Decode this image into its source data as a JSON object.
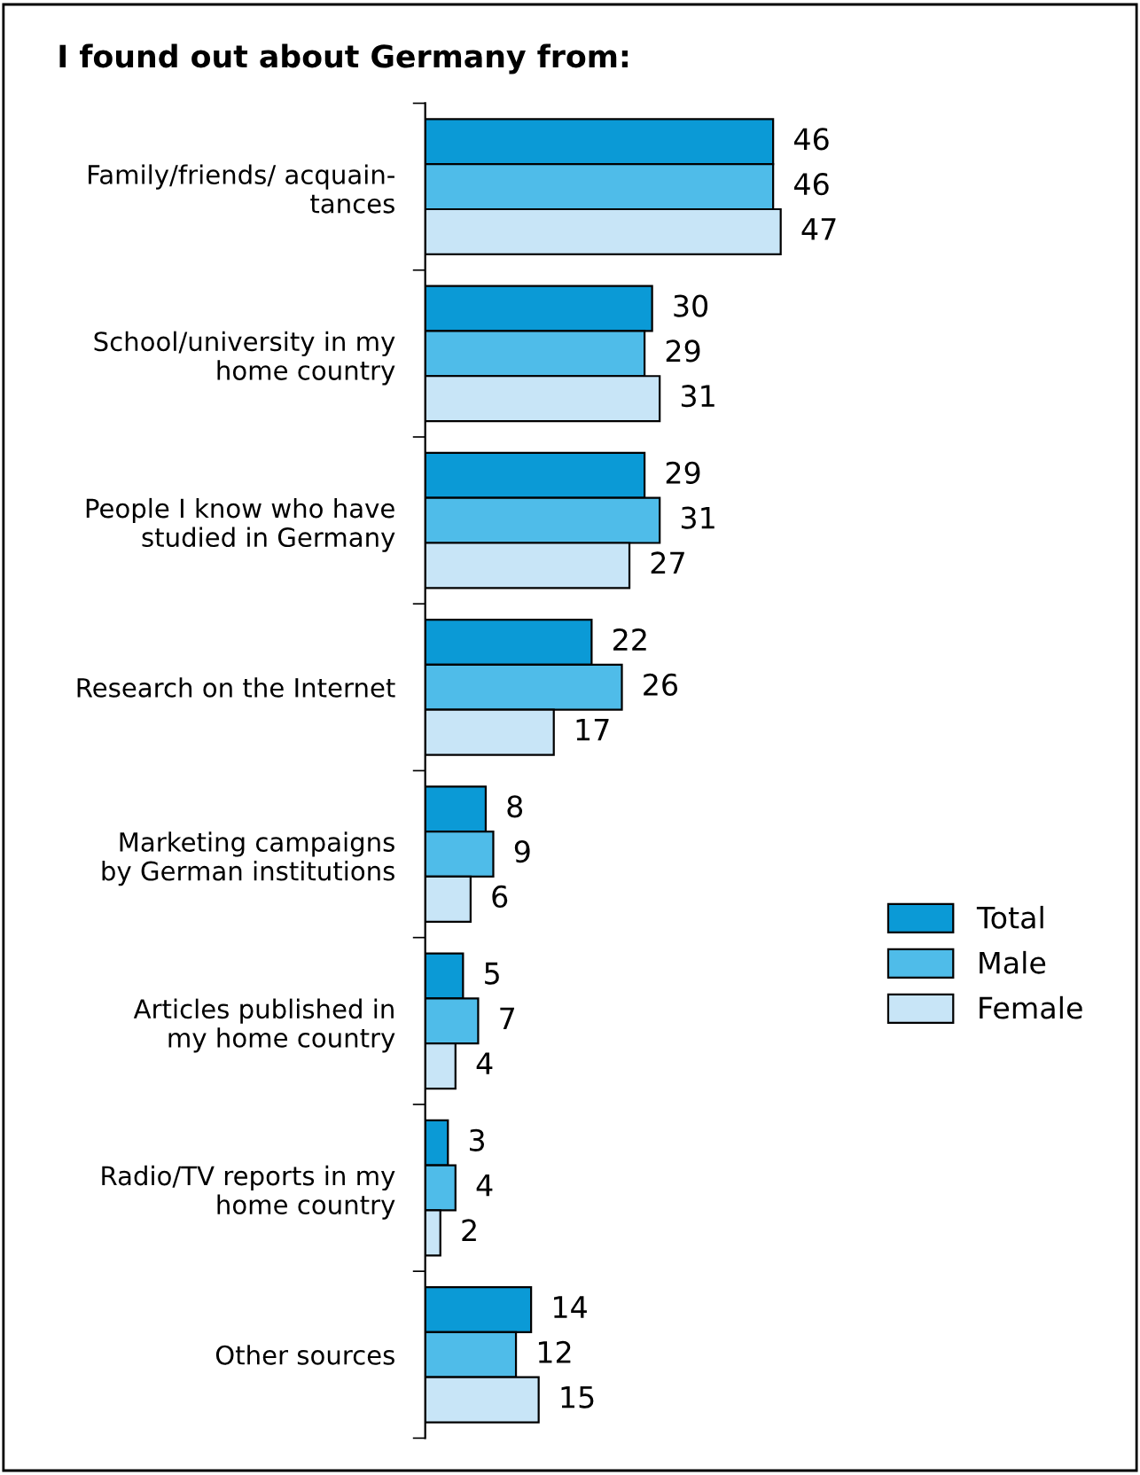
{
  "chart_data": {
    "type": "bar",
    "orientation": "horizontal",
    "title": "I found out about Germany from:",
    "categories": [
      "Family/friends/ acquain-\ntances",
      "School/university in my\nhome country",
      "People I know who have\nstudied in Germany",
      "Research on the Internet",
      "Marketing campaigns\nby German institutions",
      "Articles published in\nmy home country",
      "Radio/TV reports in my\nhome country",
      "Other sources"
    ],
    "series": [
      {
        "name": "Total",
        "color": "#0b9ad6",
        "values": [
          46,
          30,
          29,
          22,
          8,
          5,
          3,
          14
        ]
      },
      {
        "name": "Male",
        "color": "#4fbce9",
        "values": [
          46,
          29,
          31,
          26,
          9,
          7,
          4,
          12
        ]
      },
      {
        "name": "Female",
        "color": "#c8e5f7",
        "values": [
          47,
          31,
          27,
          17,
          6,
          4,
          2,
          15
        ]
      }
    ],
    "data_labels": true,
    "legend": "right",
    "grid": false,
    "tick_labels": "y"
  }
}
